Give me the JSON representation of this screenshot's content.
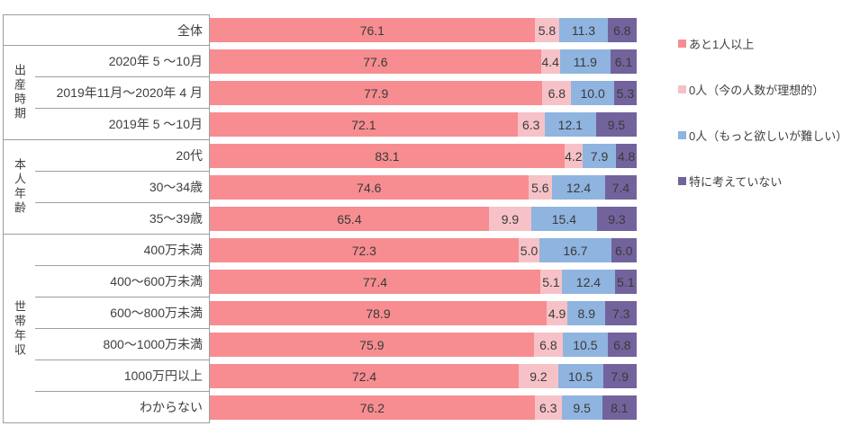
{
  "colors": {
    "background": "#ffffff",
    "table_border": "#9e9e9e",
    "label_text": "#404040",
    "value_text": "#3a3a3a"
  },
  "chart_data": {
    "type": "bar",
    "orientation": "horizontal_stacked",
    "unit": "%",
    "xlim": [
      0,
      100
    ],
    "grid": false,
    "legend_position": "right",
    "value_labels_shown": true,
    "value_decimals": 1,
    "row_groups": [
      {
        "label": "",
        "count": 1
      },
      {
        "label": "出産時期",
        "count": 3
      },
      {
        "label": "本人年齢",
        "count": 3
      },
      {
        "label": "世帯年収",
        "count": 6
      }
    ],
    "categories": [
      "全体",
      "2020年 5 ～10月",
      "2019年11月～2020年 4 月",
      "2019年 5 ～10月",
      "20代",
      "30～34歳",
      "35～39歳",
      "400万未満",
      "400～600万未満",
      "600～800万未満",
      "800～1000万未満",
      "1000万円以上",
      "わからない"
    ],
    "series": [
      {
        "name": "あと1人以上",
        "color": "#F78D90",
        "values": [
          76.1,
          77.6,
          77.9,
          72.1,
          83.1,
          74.6,
          65.4,
          72.3,
          77.4,
          78.9,
          75.9,
          72.4,
          76.2
        ]
      },
      {
        "name": "0人（今の人数が理想的）",
        "color": "#F6C2C7",
        "values": [
          5.8,
          4.4,
          6.8,
          6.3,
          4.2,
          5.6,
          9.9,
          5.0,
          5.1,
          4.9,
          6.8,
          9.2,
          6.3
        ]
      },
      {
        "name": "0人（もっと欲しいが難しい）",
        "color": "#8FB4E0",
        "values": [
          11.3,
          11.9,
          10.0,
          12.1,
          7.9,
          12.4,
          15.4,
          16.7,
          12.4,
          8.9,
          10.5,
          10.5,
          9.5
        ]
      },
      {
        "name": "特に考えていない",
        "color": "#72639C",
        "values": [
          6.8,
          6.1,
          5.3,
          9.5,
          4.8,
          7.4,
          9.3,
          6.0,
          5.1,
          7.3,
          6.8,
          7.9,
          8.1
        ]
      }
    ]
  }
}
